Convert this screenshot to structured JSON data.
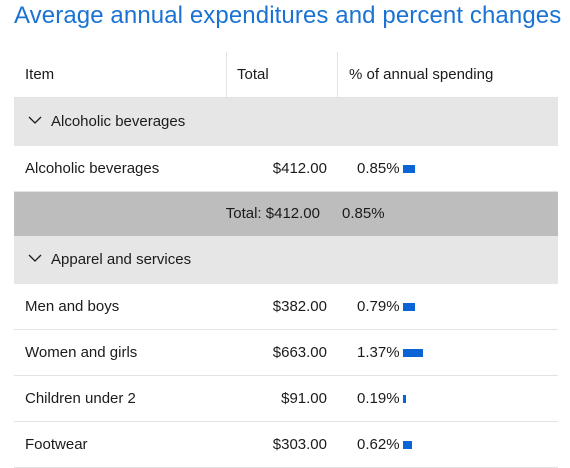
{
  "title": "Average annual expenditures and percent changes",
  "columns": {
    "item": "Item",
    "total": "Total",
    "pct": "% of annual spending"
  },
  "colors": {
    "accent": "#1a73d4",
    "bar": "#0a64d4",
    "group_bg": "#e6e6e6",
    "total_bg": "#bdbdbd"
  },
  "groups": [
    {
      "label": "Alcoholic beverages",
      "icon": "chevron-down-icon",
      "rows": [
        {
          "name": "Alcoholic beverages",
          "total": "$412.00",
          "pct": "0.85%",
          "bar_fraction": 0.85
        }
      ],
      "total_label": "Total: $412.00",
      "total_pct": "0.85%"
    },
    {
      "label": "Apparel and services",
      "icon": "chevron-down-icon",
      "rows": [
        {
          "name": "Men and boys",
          "total": "$382.00",
          "pct": "0.79%",
          "bar_fraction": 0.79
        },
        {
          "name": "Women and girls",
          "total": "$663.00",
          "pct": "1.37%",
          "bar_fraction": 1.37
        },
        {
          "name": "Children under 2",
          "total": "$91.00",
          "pct": "0.19%",
          "bar_fraction": 0.19
        },
        {
          "name": "Footwear",
          "total": "$303.00",
          "pct": "0.62%",
          "bar_fraction": 0.62
        }
      ]
    }
  ]
}
